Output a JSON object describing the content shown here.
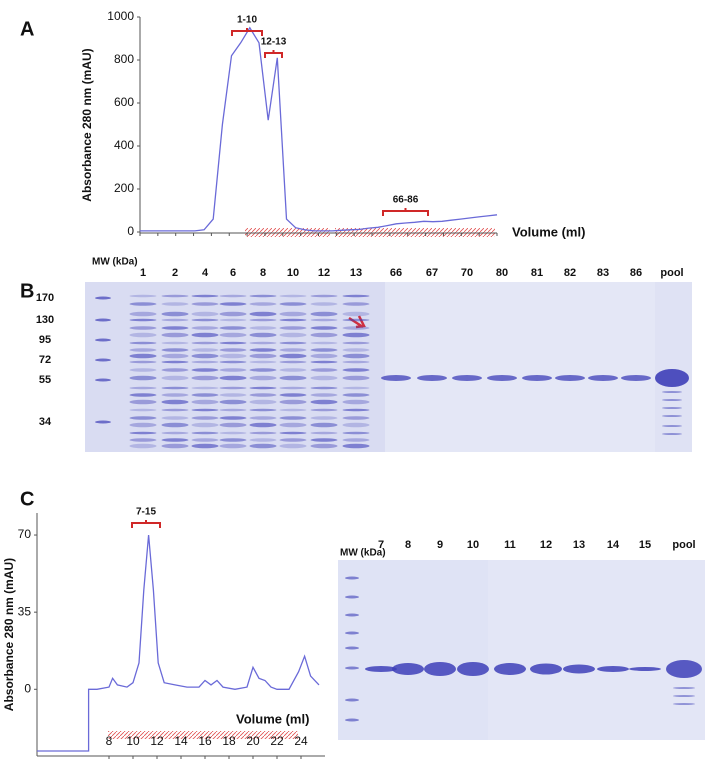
{
  "panel_labels": [
    "A",
    "B",
    "C"
  ],
  "chart_data": [
    {
      "type": "line",
      "y_label": "Absorbance 280 nm (mAU)",
      "x_label": "Volume (ml)",
      "color": "#6a6ad8",
      "categories": [
        null,
        null,
        null,
        null,
        null,
        null,
        null,
        null,
        null,
        null,
        null,
        null,
        null,
        null,
        null,
        null,
        null,
        null,
        null,
        null,
        null,
        null,
        null,
        null,
        null,
        null,
        null,
        null,
        null,
        null,
        null,
        null,
        null,
        null,
        null,
        null,
        null,
        null,
        null,
        null
      ],
      "values": [
        5,
        5,
        5,
        5,
        5,
        5,
        5,
        10,
        60,
        500,
        820,
        880,
        950,
        880,
        520,
        810,
        60,
        20,
        10,
        5,
        5,
        5,
        8,
        10,
        12,
        18,
        22,
        30,
        38,
        42,
        45,
        50,
        48,
        50,
        55,
        60,
        65,
        70,
        75,
        80
      ],
      "ylim": [
        0,
        1000
      ],
      "yticks": [
        0,
        200,
        400,
        600,
        800,
        1000
      ],
      "annotations": [
        "1-10",
        "12-13",
        "66-86"
      ]
    },
    {
      "type": "line",
      "y_label": "Absorbance 280 nm (mAU)",
      "x_label": "Volume (ml)",
      "color": "#6a6ad8",
      "x": [
        2,
        6.3,
        6.3,
        7,
        8,
        8.3,
        8.7,
        9.5,
        10,
        10.5,
        10.9,
        11.3,
        11.7,
        12.1,
        12.6,
        13.5,
        14.5,
        15.5,
        16,
        16.5,
        17,
        17.5,
        18.5,
        19.5,
        20,
        20.5,
        21,
        21.5,
        22,
        23,
        23.8,
        24.3,
        24.8,
        25.5
      ],
      "values": [
        -28,
        -28,
        0,
        0,
        1,
        5,
        2,
        1,
        3,
        12,
        45,
        70,
        45,
        12,
        3,
        2,
        1,
        1,
        4,
        2,
        4,
        1,
        0,
        1,
        10,
        5,
        4,
        1,
        0,
        0,
        8,
        15,
        6,
        2
      ],
      "xlim": [
        2,
        26
      ],
      "ylim": [
        -28,
        80
      ],
      "xticks": [
        8,
        10,
        12,
        14,
        16,
        18,
        20,
        22,
        24
      ],
      "yticks": [
        0,
        35,
        70
      ],
      "annotations": [
        "7-15"
      ]
    }
  ],
  "gels": [
    {
      "mw_label": "MW (kDa)",
      "lanes": [
        "1",
        "2",
        "4",
        "6",
        "8",
        "10",
        "12",
        "13",
        "66",
        "67",
        "70",
        "80",
        "81",
        "82",
        "83",
        "86",
        "pool"
      ],
      "markers": [
        170,
        130,
        95,
        72,
        55,
        34
      ]
    },
    {
      "mw_label": "MW (kDa)",
      "lanes": [
        "7",
        "8",
        "9",
        "10",
        "11",
        "12",
        "13",
        "14",
        "15",
        "pool"
      ]
    }
  ]
}
